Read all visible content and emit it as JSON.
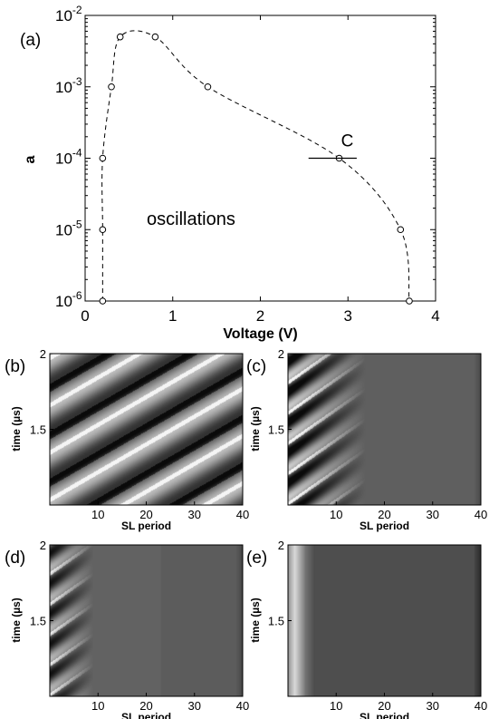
{
  "chart_data": [
    {
      "panel": "(a)",
      "type": "scatter",
      "xlabel": "Voltage (V)",
      "ylabel": "a",
      "xlim": [
        0,
        4
      ],
      "ylim": [
        1e-06,
        0.01
      ],
      "yscale": "log",
      "xticks": [
        "0",
        "1",
        "2",
        "3",
        "4"
      ],
      "yticks": [
        {
          "base": "10",
          "exp": "-6",
          "value": 1e-06
        },
        {
          "base": "10",
          "exp": "-5",
          "value": 1e-05
        },
        {
          "base": "10",
          "exp": "-4",
          "value": 0.0001
        },
        {
          "base": "10",
          "exp": "-3",
          "value": 0.001
        },
        {
          "base": "10",
          "exp": "-2",
          "value": 0.01
        }
      ],
      "annotations": [
        "oscillations",
        "C"
      ],
      "marker_point": {
        "x": 2.9,
        "y": 0.0001,
        "label": "C"
      },
      "marker_span": [
        2.55,
        3.1
      ],
      "series": [
        {
          "style": "dashed",
          "x": [
            0.2,
            0.2,
            0.2,
            0.3,
            0.4,
            0.8,
            1.4,
            2.9,
            3.6,
            3.7
          ],
          "y": [
            1e-06,
            1e-05,
            0.0001,
            0.001,
            0.005,
            0.005,
            0.001,
            0.0001,
            1e-05,
            1e-06
          ]
        }
      ]
    },
    {
      "panel": "(b)",
      "type": "heatmap",
      "pattern": "travelling-waves-full",
      "xlabel": "SL period",
      "ylabel": "time (µs)",
      "xlim": [
        0,
        40
      ],
      "ylim": [
        1,
        2
      ],
      "xticks": [
        "10",
        "20",
        "30",
        "40"
      ],
      "yticks": [
        "1.5",
        "2"
      ]
    },
    {
      "panel": "(c)",
      "type": "heatmap",
      "pattern": "waves-confined-to-first-15-periods",
      "xlabel": "SL period",
      "ylabel": "time (µs)",
      "xlim": [
        0,
        40
      ],
      "ylim": [
        1,
        2
      ],
      "xticks": [
        "10",
        "20",
        "30",
        "40"
      ],
      "yticks": [
        "1.5",
        "2"
      ]
    },
    {
      "panel": "(d)",
      "type": "heatmap",
      "pattern": "weak-waves-near-emitter",
      "xlabel": "SL period",
      "ylabel": "time (µs)",
      "xlim": [
        0,
        40
      ],
      "ylim": [
        1,
        2
      ],
      "xticks": [
        "10",
        "20",
        "30",
        "40"
      ],
      "yticks": [
        "1.5",
        "2"
      ]
    },
    {
      "panel": "(e)",
      "type": "heatmap",
      "pattern": "stationary",
      "xlabel": "SL period",
      "ylabel": "time (µs)",
      "xlim": [
        0,
        40
      ],
      "ylim": [
        1,
        2
      ],
      "xticks": [
        "10",
        "20",
        "30",
        "40"
      ],
      "yticks": [
        "1.5",
        "2"
      ]
    }
  ]
}
